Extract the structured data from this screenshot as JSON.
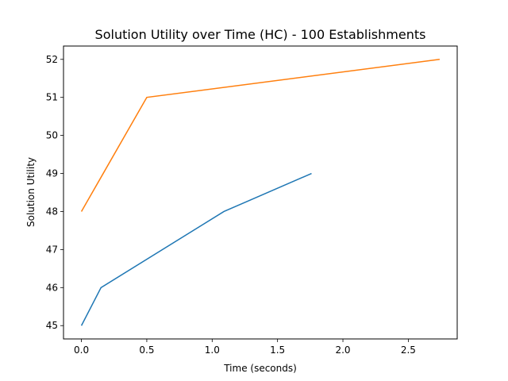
{
  "chart_data": {
    "type": "line",
    "title": "Solution Utility over Time (HC) -  100 Establishments",
    "xlabel": "Time (seconds)",
    "ylabel": "Solution Utility",
    "xlim": [
      -0.137,
      2.874
    ],
    "ylim": [
      44.65,
      52.35
    ],
    "xticks": [
      0.0,
      0.5,
      1.0,
      1.5,
      2.0,
      2.5
    ],
    "xtick_labels": [
      "0.0",
      "0.5",
      "1.0",
      "1.5",
      "2.0",
      "2.5"
    ],
    "yticks": [
      45,
      46,
      47,
      48,
      49,
      50,
      51,
      52
    ],
    "ytick_labels": [
      "45",
      "46",
      "47",
      "48",
      "49",
      "50",
      "51",
      "52"
    ],
    "grid": false,
    "legend": "none",
    "series": [
      {
        "color": "#1f77b4",
        "x": [
          0.0,
          0.15,
          1.09,
          1.76
        ],
        "y": [
          45,
          46,
          48,
          49
        ]
      },
      {
        "color": "#ff7f0e",
        "x": [
          0.0,
          0.5,
          2.74
        ],
        "y": [
          48,
          51,
          52
        ]
      }
    ]
  }
}
